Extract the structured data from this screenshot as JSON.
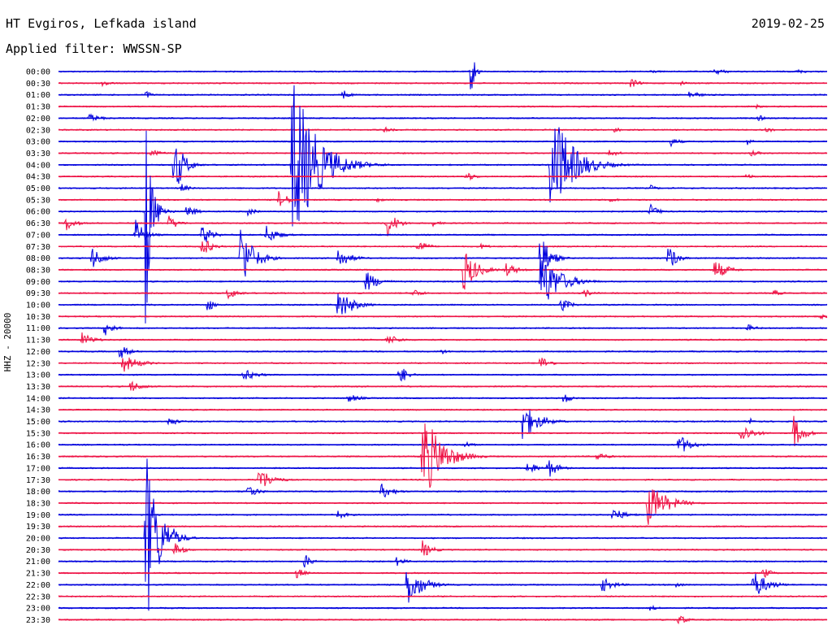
{
  "header": {
    "station": "HT Evgiros, Lefkada island",
    "date": "2019-02-25",
    "filter": "Applied filter: WWSSN-SP"
  },
  "chart_data": {
    "type": "seismogram",
    "channel_label": "HHZ - 20000",
    "colors": {
      "even_hour_trace": "#0000dd",
      "half_hour_trace": "#ee1144"
    },
    "minutes_per_line": 30,
    "x_range_minutes": [
      0,
      30
    ],
    "rows": [
      "00:00",
      "00:30",
      "01:00",
      "01:30",
      "02:00",
      "02:30",
      "03:00",
      "03:30",
      "04:00",
      "04:30",
      "05:00",
      "05:30",
      "06:00",
      "06:30",
      "07:00",
      "07:30",
      "08:00",
      "08:30",
      "09:00",
      "09:30",
      "10:00",
      "10:30",
      "11:00",
      "11:30",
      "12:00",
      "12:30",
      "13:00",
      "13:30",
      "14:00",
      "14:30",
      "15:00",
      "15:30",
      "16:00",
      "16:30",
      "17:00",
      "17:30",
      "18:00",
      "18:30",
      "19:00",
      "19:30",
      "20:00",
      "20:30",
      "21:00",
      "21:30",
      "22:00",
      "22:30",
      "23:00",
      "23:30"
    ],
    "events": [
      {
        "row": 0,
        "t": 25.6,
        "amp": 4,
        "dur": 1.0
      },
      {
        "row": 0,
        "t": 23.0,
        "amp": 3,
        "dur": 0.8
      },
      {
        "row": 0,
        "t": 16.1,
        "amp": 36,
        "dur": 0.25
      },
      {
        "row": 0,
        "t": 28.8,
        "amp": 3,
        "dur": 0.8
      },
      {
        "row": 1,
        "t": 1.7,
        "amp": 6,
        "dur": 0.5
      },
      {
        "row": 1,
        "t": 22.3,
        "amp": 8,
        "dur": 0.5
      },
      {
        "row": 1,
        "t": 24.3,
        "amp": 3,
        "dur": 0.5
      },
      {
        "row": 2,
        "t": 3.4,
        "amp": 6,
        "dur": 0.4
      },
      {
        "row": 2,
        "t": 11.1,
        "amp": 8,
        "dur": 0.4
      },
      {
        "row": 2,
        "t": 24.6,
        "amp": 6,
        "dur": 0.7
      },
      {
        "row": 3,
        "t": 27.2,
        "amp": 3,
        "dur": 0.5
      },
      {
        "row": 4,
        "t": 1.2,
        "amp": 6,
        "dur": 0.8
      },
      {
        "row": 4,
        "t": 27.3,
        "amp": 5,
        "dur": 0.4
      },
      {
        "row": 5,
        "t": 12.7,
        "amp": 4,
        "dur": 0.6
      },
      {
        "row": 5,
        "t": 21.7,
        "amp": 4,
        "dur": 0.5
      },
      {
        "row": 5,
        "t": 27.6,
        "amp": 4,
        "dur": 0.6
      },
      {
        "row": 6,
        "t": 23.9,
        "amp": 6,
        "dur": 0.6
      },
      {
        "row": 6,
        "t": 26.9,
        "amp": 6,
        "dur": 0.3
      },
      {
        "row": 7,
        "t": 3.6,
        "amp": 5,
        "dur": 0.8
      },
      {
        "row": 7,
        "t": 21.5,
        "amp": 5,
        "dur": 0.7
      },
      {
        "row": 7,
        "t": 27.0,
        "amp": 4,
        "dur": 0.7
      },
      {
        "row": 8,
        "t": 4.5,
        "amp": 44,
        "dur": 0.6
      },
      {
        "row": 8,
        "t": 9.1,
        "amp": 120,
        "dur": 1.5
      },
      {
        "row": 8,
        "t": 19.2,
        "amp": 80,
        "dur": 1.3
      },
      {
        "row": 9,
        "t": 15.9,
        "amp": 7,
        "dur": 0.6
      },
      {
        "row": 9,
        "t": 26.8,
        "amp": 4,
        "dur": 0.6
      },
      {
        "row": 10,
        "t": 4.8,
        "amp": 6,
        "dur": 0.5
      },
      {
        "row": 10,
        "t": 23.1,
        "amp": 4,
        "dur": 0.5
      },
      {
        "row": 11,
        "t": 8.6,
        "amp": 12,
        "dur": 0.6
      },
      {
        "row": 11,
        "t": 12.4,
        "amp": 3,
        "dur": 0.6
      },
      {
        "row": 11,
        "t": 21.5,
        "amp": 3,
        "dur": 0.8
      },
      {
        "row": 12,
        "t": 3.4,
        "amp": 260,
        "dur": 0.2
      },
      {
        "row": 12,
        "t": 3.6,
        "amp": 40,
        "dur": 0.5
      },
      {
        "row": 12,
        "t": 5.0,
        "amp": 12,
        "dur": 0.5
      },
      {
        "row": 12,
        "t": 7.4,
        "amp": 6,
        "dur": 0.5
      },
      {
        "row": 12,
        "t": 23.1,
        "amp": 10,
        "dur": 0.5
      },
      {
        "row": 13,
        "t": 0.3,
        "amp": 10,
        "dur": 0.6
      },
      {
        "row": 13,
        "t": 4.3,
        "amp": 10,
        "dur": 0.6
      },
      {
        "row": 13,
        "t": 12.8,
        "amp": 20,
        "dur": 0.6
      },
      {
        "row": 13,
        "t": 14.6,
        "amp": 4,
        "dur": 0.6
      },
      {
        "row": 14,
        "t": 3.0,
        "amp": 20,
        "dur": 0.6
      },
      {
        "row": 14,
        "t": 5.6,
        "amp": 15,
        "dur": 0.6
      },
      {
        "row": 14,
        "t": 8.1,
        "amp": 12,
        "dur": 0.8
      },
      {
        "row": 15,
        "t": 5.6,
        "amp": 14,
        "dur": 0.6
      },
      {
        "row": 15,
        "t": 14.0,
        "amp": 10,
        "dur": 0.6
      },
      {
        "row": 15,
        "t": 16.5,
        "amp": 4,
        "dur": 0.6
      },
      {
        "row": 16,
        "t": 1.3,
        "amp": 15,
        "dur": 0.7
      },
      {
        "row": 16,
        "t": 7.1,
        "amp": 45,
        "dur": 0.8
      },
      {
        "row": 16,
        "t": 10.9,
        "amp": 14,
        "dur": 0.8
      },
      {
        "row": 16,
        "t": 18.8,
        "amp": 35,
        "dur": 0.6
      },
      {
        "row": 16,
        "t": 23.8,
        "amp": 20,
        "dur": 0.5
      },
      {
        "row": 17,
        "t": 15.8,
        "amp": 30,
        "dur": 0.8
      },
      {
        "row": 17,
        "t": 17.4,
        "amp": 10,
        "dur": 0.8
      },
      {
        "row": 17,
        "t": 25.6,
        "amp": 14,
        "dur": 0.8
      },
      {
        "row": 18,
        "t": 12.0,
        "amp": 14,
        "dur": 0.8
      },
      {
        "row": 18,
        "t": 18.8,
        "amp": 40,
        "dur": 1.2
      },
      {
        "row": 19,
        "t": 6.6,
        "amp": 8,
        "dur": 0.7
      },
      {
        "row": 19,
        "t": 13.8,
        "amp": 7,
        "dur": 0.6
      },
      {
        "row": 19,
        "t": 20.5,
        "amp": 6,
        "dur": 0.6
      },
      {
        "row": 19,
        "t": 27.9,
        "amp": 5,
        "dur": 0.5
      },
      {
        "row": 20,
        "t": 5.8,
        "amp": 12,
        "dur": 0.4
      },
      {
        "row": 20,
        "t": 10.9,
        "amp": 22,
        "dur": 0.9
      },
      {
        "row": 20,
        "t": 19.6,
        "amp": 10,
        "dur": 0.6
      },
      {
        "row": 21,
        "t": 29.7,
        "amp": 4,
        "dur": 0.5
      },
      {
        "row": 22,
        "t": 1.8,
        "amp": 10,
        "dur": 0.6
      },
      {
        "row": 22,
        "t": 26.9,
        "amp": 5,
        "dur": 0.6
      },
      {
        "row": 23,
        "t": 0.9,
        "amp": 10,
        "dur": 0.7
      },
      {
        "row": 23,
        "t": 12.8,
        "amp": 8,
        "dur": 0.8
      },
      {
        "row": 24,
        "t": 2.4,
        "amp": 10,
        "dur": 0.6
      },
      {
        "row": 24,
        "t": 14.9,
        "amp": 4,
        "dur": 0.6
      },
      {
        "row": 25,
        "t": 2.5,
        "amp": 12,
        "dur": 1.0
      },
      {
        "row": 25,
        "t": 18.8,
        "amp": 10,
        "dur": 0.6
      },
      {
        "row": 26,
        "t": 7.2,
        "amp": 8,
        "dur": 0.9
      },
      {
        "row": 26,
        "t": 13.3,
        "amp": 15,
        "dur": 0.5
      },
      {
        "row": 27,
        "t": 2.8,
        "amp": 8,
        "dur": 0.8
      },
      {
        "row": 28,
        "t": 11.3,
        "amp": 6,
        "dur": 0.8
      },
      {
        "row": 28,
        "t": 19.7,
        "amp": 8,
        "dur": 0.5
      },
      {
        "row": 30,
        "t": 4.3,
        "amp": 8,
        "dur": 0.5
      },
      {
        "row": 30,
        "t": 18.1,
        "amp": 25,
        "dur": 1.0
      },
      {
        "row": 30,
        "t": 27.0,
        "amp": 5,
        "dur": 0.5
      },
      {
        "row": 31,
        "t": 26.6,
        "amp": 14,
        "dur": 0.8
      },
      {
        "row": 31,
        "t": 28.7,
        "amp": 22,
        "dur": 0.6
      },
      {
        "row": 32,
        "t": 15.8,
        "amp": 5,
        "dur": 0.6
      },
      {
        "row": 32,
        "t": 24.2,
        "amp": 14,
        "dur": 0.8
      },
      {
        "row": 33,
        "t": 14.2,
        "amp": 60,
        "dur": 1.2
      },
      {
        "row": 33,
        "t": 21.0,
        "amp": 6,
        "dur": 0.7
      },
      {
        "row": 34,
        "t": 18.3,
        "amp": 10,
        "dur": 0.6
      },
      {
        "row": 34,
        "t": 19.1,
        "amp": 14,
        "dur": 0.6
      },
      {
        "row": 35,
        "t": 7.8,
        "amp": 18,
        "dur": 0.8
      },
      {
        "row": 36,
        "t": 7.4,
        "amp": 10,
        "dur": 0.6
      },
      {
        "row": 36,
        "t": 12.6,
        "amp": 10,
        "dur": 0.8
      },
      {
        "row": 37,
        "t": 23.0,
        "amp": 28,
        "dur": 1.2
      },
      {
        "row": 38,
        "t": 10.9,
        "amp": 6,
        "dur": 0.6
      },
      {
        "row": 38,
        "t": 21.6,
        "amp": 10,
        "dur": 0.8
      },
      {
        "row": 40,
        "t": 3.4,
        "amp": 120,
        "dur": 0.8
      },
      {
        "row": 40,
        "t": 4.5,
        "amp": 12,
        "dur": 0.6
      },
      {
        "row": 41,
        "t": 4.5,
        "amp": 10,
        "dur": 0.6
      },
      {
        "row": 41,
        "t": 14.2,
        "amp": 12,
        "dur": 0.6
      },
      {
        "row": 42,
        "t": 9.6,
        "amp": 10,
        "dur": 0.5
      },
      {
        "row": 42,
        "t": 13.2,
        "amp": 6,
        "dur": 0.6
      },
      {
        "row": 43,
        "t": 9.3,
        "amp": 8,
        "dur": 0.5
      },
      {
        "row": 43,
        "t": 27.5,
        "amp": 8,
        "dur": 0.5
      },
      {
        "row": 44,
        "t": 13.6,
        "amp": 30,
        "dur": 0.9
      },
      {
        "row": 44,
        "t": 21.2,
        "amp": 10,
        "dur": 0.8
      },
      {
        "row": 44,
        "t": 27.1,
        "amp": 20,
        "dur": 0.9
      },
      {
        "row": 44,
        "t": 24.1,
        "amp": 4,
        "dur": 0.5
      },
      {
        "row": 46,
        "t": 23.1,
        "amp": 4,
        "dur": 0.5
      },
      {
        "row": 47,
        "t": 24.2,
        "amp": 8,
        "dur": 0.5
      }
    ]
  }
}
